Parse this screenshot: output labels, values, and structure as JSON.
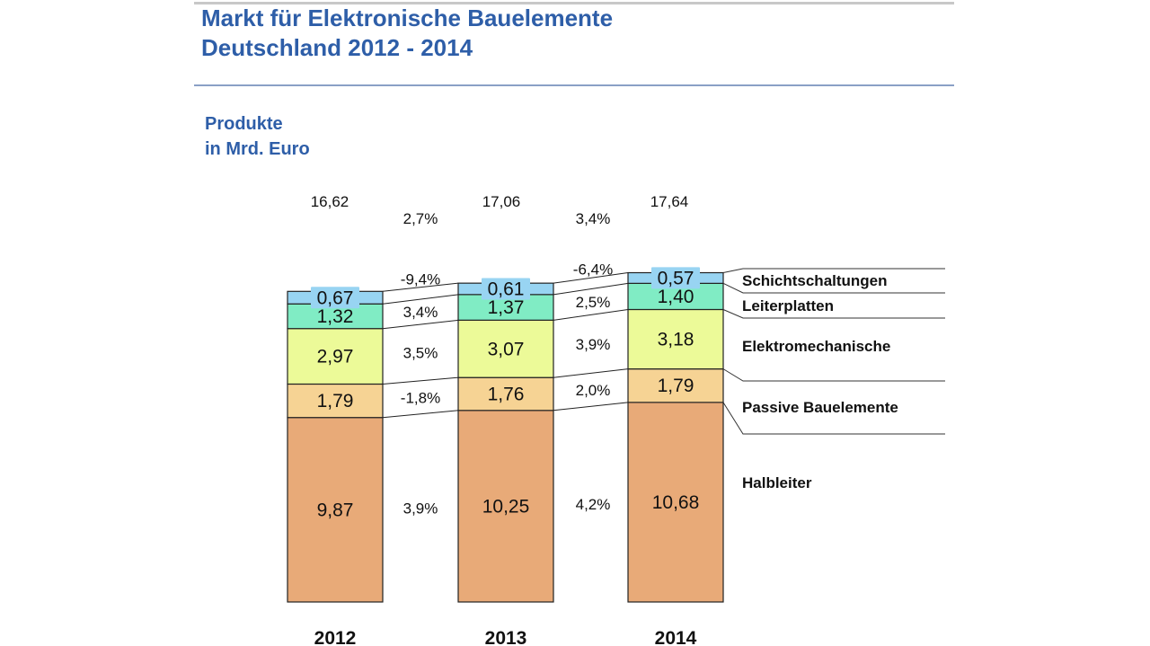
{
  "title_lines": [
    "Markt für Elektronische Bauelemente",
    "Deutschland 2012 - 2014"
  ],
  "subtitle_lines": [
    "Produkte",
    "in Mrd. Euro"
  ],
  "chart_data": {
    "type": "bar",
    "stacked": true,
    "categories": [
      "2012",
      "2013",
      "2014"
    ],
    "series": [
      {
        "name": "Halbleiter",
        "color": "#e8aa78",
        "values": [
          9.87,
          10.25,
          10.68
        ],
        "labels": [
          "9,87",
          "10,25",
          "10,68"
        ]
      },
      {
        "name": "Passive Bauelemente",
        "color": "#f6d394",
        "values": [
          1.79,
          1.76,
          1.79
        ],
        "labels": [
          "1,79",
          "1,76",
          "1,79"
        ]
      },
      {
        "name": "Elektromechanische",
        "color": "#ecfa98",
        "values": [
          2.97,
          3.07,
          3.18
        ],
        "labels": [
          "2,97",
          "3,07",
          "3,18"
        ]
      },
      {
        "name": "Leiterplatten",
        "color": "#80ecc4",
        "values": [
          1.32,
          1.37,
          1.4
        ],
        "labels": [
          "1,32",
          "1,37",
          "1,40"
        ]
      },
      {
        "name": "Schichtschaltungen",
        "color": "#98d4f2",
        "values": [
          0.67,
          0.61,
          0.57
        ],
        "labels": [
          "0,67",
          "0,61",
          "0,57"
        ]
      }
    ],
    "totals": [
      "16,62",
      "17,06",
      "17,64"
    ],
    "growth": {
      "total": [
        "2,7%",
        "3,4%"
      ],
      "Halbleiter": [
        "3,9%",
        "4,2%"
      ],
      "Passive Bauelemente": [
        "-1,8%",
        "2,0%"
      ],
      "Elektromechanische": [
        "3,5%",
        "3,9%"
      ],
      "Leiterplatten": [
        "3,4%",
        "2,5%"
      ],
      "Schichtschaltungen": [
        "-9,4%",
        "-6,4%"
      ]
    },
    "legend_placement": "right",
    "grid": false
  }
}
